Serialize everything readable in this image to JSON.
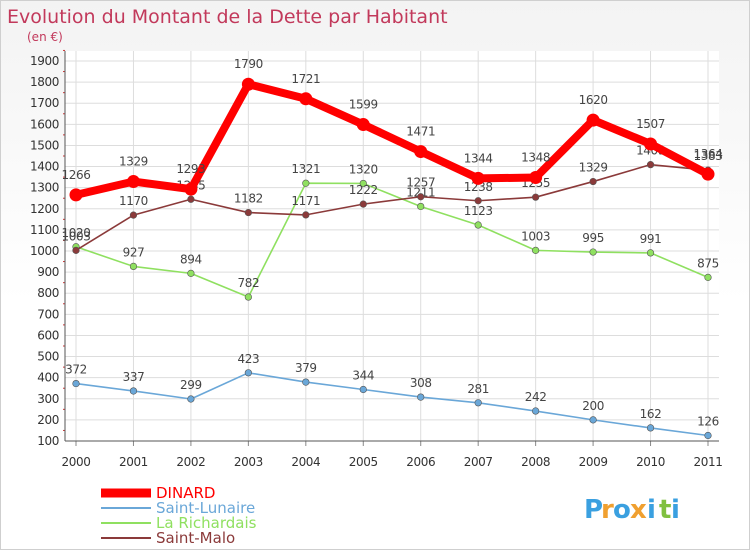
{
  "chart_data": {
    "type": "line",
    "title": "Evolution du Montant de la Dette par Habitant",
    "subtitle": "(en €)",
    "xlabel": "",
    "ylabel": "",
    "categories": [
      "2000",
      "2001",
      "2002",
      "2003",
      "2004",
      "2005",
      "2006",
      "2007",
      "2008",
      "2009",
      "2010",
      "2011"
    ],
    "yticks": [
      100,
      200,
      300,
      400,
      500,
      600,
      700,
      800,
      900,
      1000,
      1100,
      1200,
      1300,
      1400,
      1500,
      1600,
      1700,
      1800,
      1900
    ],
    "ylim": [
      100,
      1900
    ],
    "grid": true,
    "legend_position": "bottom-left",
    "series": [
      {
        "name": "DINARD",
        "color": "#ff0000",
        "values": [
          1266,
          1329,
          1293,
          1790,
          1721,
          1599,
          1471,
          1344,
          1348,
          1620,
          1507,
          1364
        ]
      },
      {
        "name": "Saint-Lunaire",
        "color": "#6aa7d8",
        "values": [
          372,
          337,
          299,
          423,
          379,
          344,
          308,
          281,
          242,
          200,
          162,
          126
        ]
      },
      {
        "name": "La Richardais",
        "color": "#8fe060",
        "values": [
          1020,
          927,
          894,
          782,
          1321,
          1320,
          1211,
          1123,
          1003,
          995,
          991,
          875
        ]
      },
      {
        "name": "Saint-Malo",
        "color": "#8b3a3a",
        "values": [
          1003,
          1170,
          1245,
          1182,
          1171,
          1222,
          1257,
          1238,
          1255,
          1329,
          1409,
          1383
        ]
      }
    ]
  },
  "logo": {
    "letters": [
      "P",
      "r",
      "o",
      "x",
      "i",
      "t",
      "i"
    ],
    "colors": [
      "#3aa0e0",
      "#f0a030",
      "#3aa0e0",
      "#f0a030",
      "#3aa0e0",
      "#80c040",
      "#3aa0e0"
    ]
  }
}
